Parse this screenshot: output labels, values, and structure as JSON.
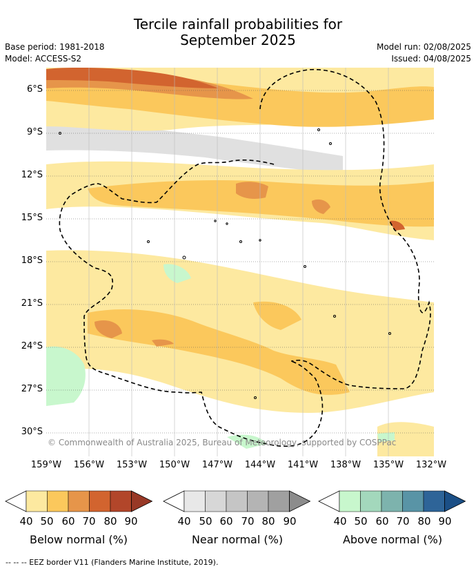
{
  "title_line1": "Tercile rainfall probabilities for",
  "title_line2": "September 2025",
  "base_period": "Base period: 1981-2018",
  "model": "Model: ACCESS-S2",
  "model_run": "Model run: 02/08/2025",
  "issued": "Issued: 04/08/2025",
  "lat_labels": [
    "6°S",
    "9°S",
    "12°S",
    "15°S",
    "18°S",
    "21°S",
    "24°S",
    "27°S",
    "30°S"
  ],
  "lon_labels": [
    "159°W",
    "156°W",
    "153°W",
    "150°W",
    "147°W",
    "144°W",
    "141°W",
    "138°W",
    "135°W",
    "132°W"
  ],
  "copyright": "© Commonwealth of Australia 2025, Bureau of Meteorology, supported by COSPPac",
  "colorbars": [
    {
      "label": "Below normal (%)",
      "ticks": [
        "40",
        "50",
        "60",
        "70",
        "80",
        "90"
      ],
      "colors": [
        "#fde9a0",
        "#fbc85c",
        "#e6954a",
        "#d2642f",
        "#b2462a",
        "#983826"
      ]
    },
    {
      "label": "Near normal (%)",
      "ticks": [
        "40",
        "50",
        "60",
        "70",
        "80",
        "90"
      ],
      "colors": [
        "#e8e8e8",
        "#d7d7d7",
        "#c5c5c5",
        "#b4b4b4",
        "#a0a0a0",
        "#8c8c8c"
      ]
    },
    {
      "label": "Above normal (%)",
      "ticks": [
        "40",
        "50",
        "60",
        "70",
        "80",
        "90"
      ],
      "colors": [
        "#c8f7cd",
        "#a3d8bc",
        "#7db3ad",
        "#5994a6",
        "#2e6498",
        "#1b4f86"
      ]
    }
  ],
  "eez_note": "--  --  -- EEZ border V11 (Flanders Marine Institute, 2019).",
  "colors": {
    "below_light": "#fde9a0",
    "below_mid": "#fbc85c",
    "below_dark": "#e6954a",
    "below_darker": "#d2642f",
    "near_light": "#e0e0e0",
    "above_light": "#c8f7cd"
  }
}
